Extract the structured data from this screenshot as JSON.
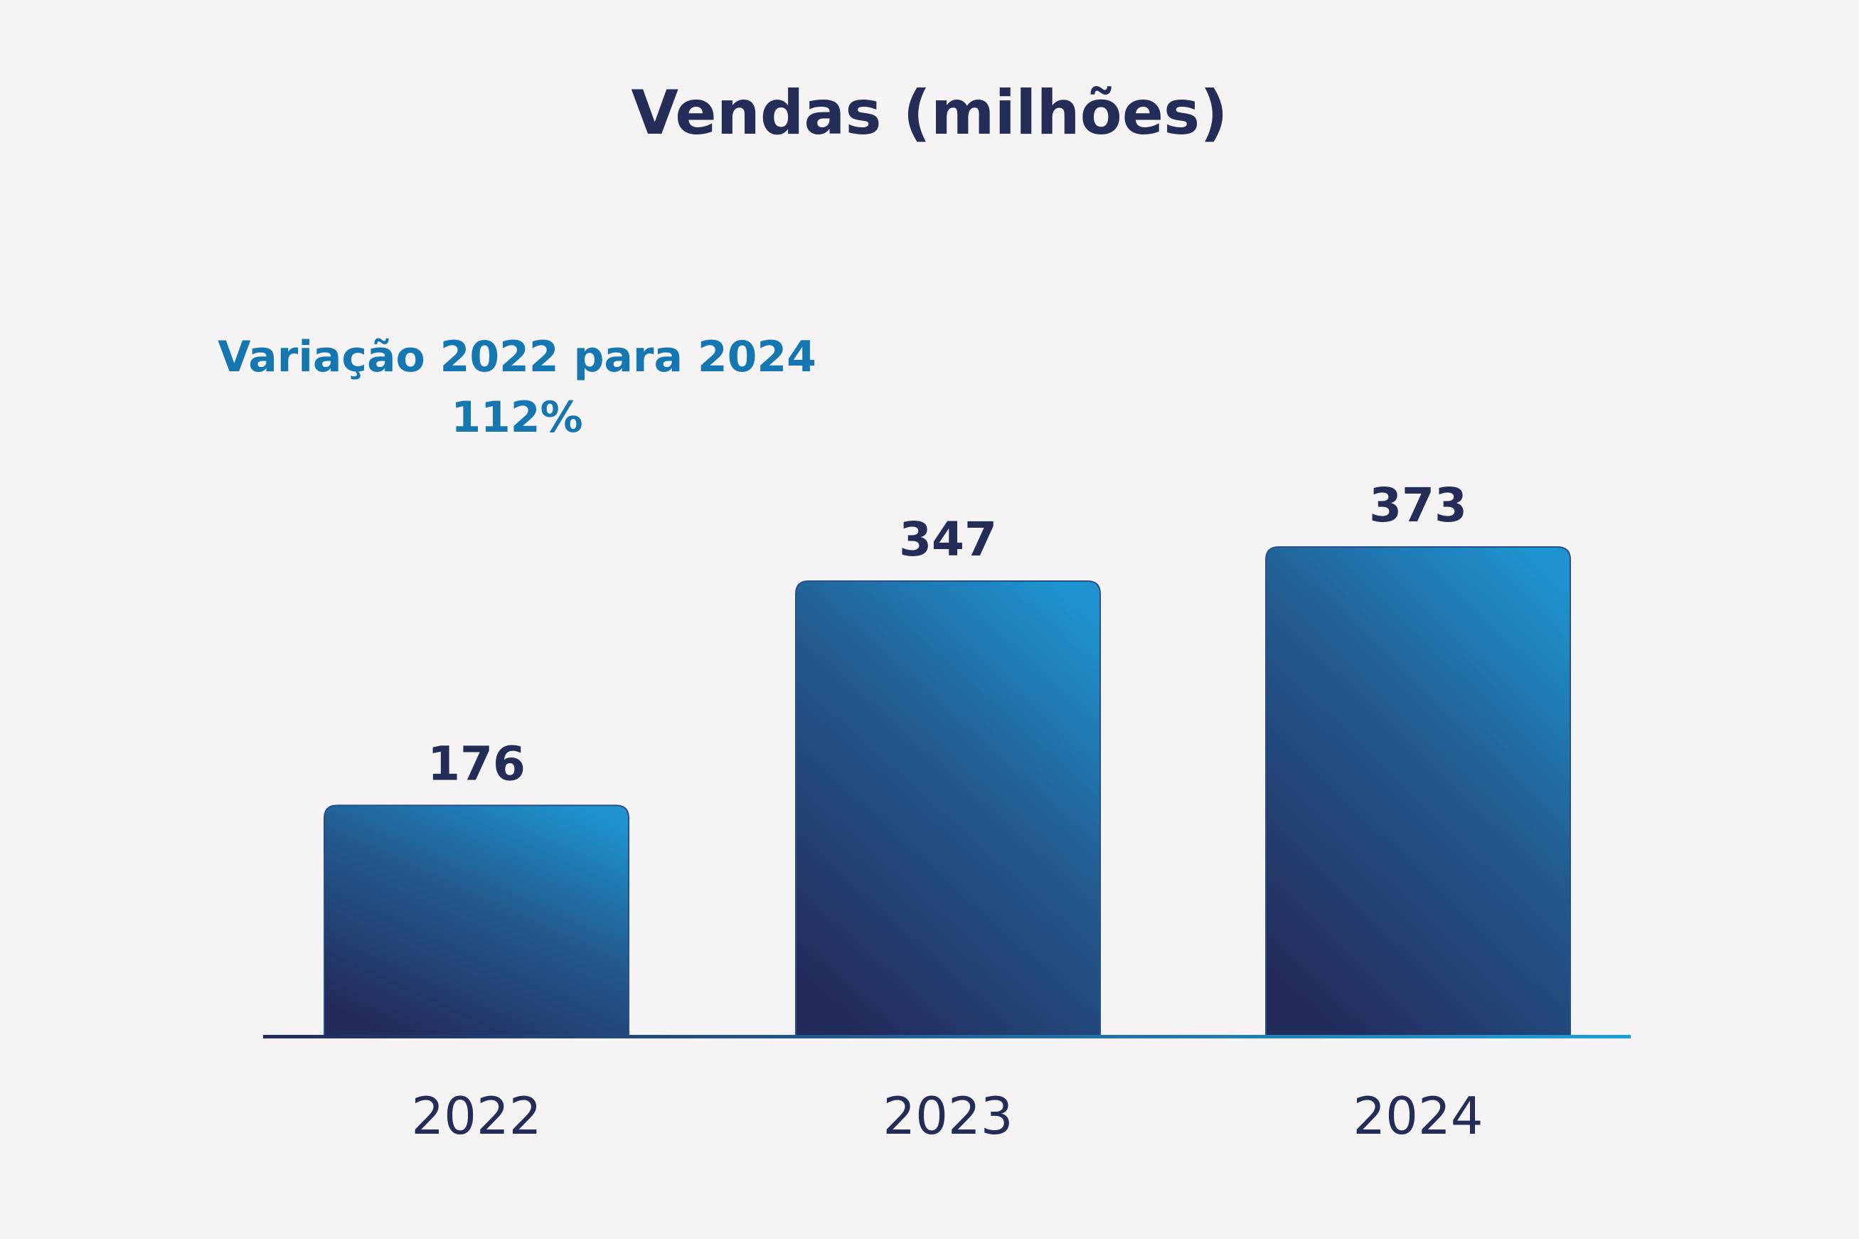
{
  "chart_data": {
    "type": "bar",
    "title": "Vendas (milhões)",
    "categories": [
      "2022",
      "2023",
      "2024"
    ],
    "values": [
      176,
      347,
      373
    ],
    "data_labels": [
      "176",
      "347",
      "373"
    ],
    "annotation": {
      "line1": "Variação 2022 para 2024",
      "line2": "112%"
    },
    "ylim": [
      0,
      373
    ],
    "grid": false,
    "colors": {
      "bar_top": "#1e93cf",
      "bar_bottom": "#232b5b",
      "axis_start": "#232b5b",
      "axis_end": "#1e9fda",
      "text_dark": "#232d57",
      "annotation": "#1477b2",
      "background": "#f5f3f4"
    }
  }
}
